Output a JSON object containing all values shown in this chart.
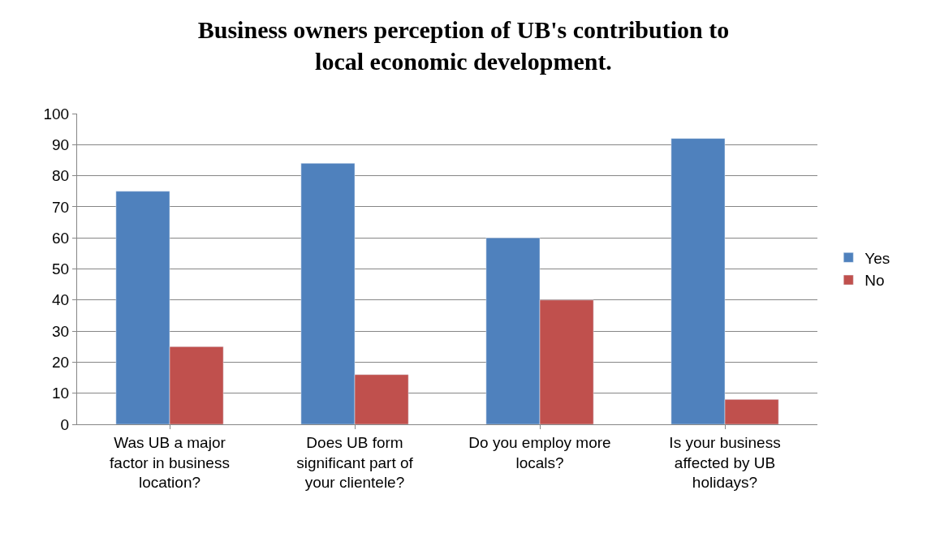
{
  "chart_data": {
    "type": "bar",
    "title": "Business owners perception of UB's contribution to local economic development.",
    "categories": [
      "Was UB a major factor in business location?",
      "Does UB form significant part of your clientele?",
      "Do you employ more locals?",
      "Is your business affected by UB holidays?"
    ],
    "series": [
      {
        "name": "Yes",
        "color": "#4f81bd",
        "values": [
          75,
          84,
          60,
          92
        ]
      },
      {
        "name": "No",
        "color": "#c0504d",
        "values": [
          25,
          16,
          40,
          8
        ]
      }
    ],
    "ylim": [
      0,
      100
    ],
    "yticks": [
      0,
      10,
      20,
      30,
      40,
      50,
      60,
      70,
      80,
      90,
      100
    ],
    "grid": "y",
    "legend": "right"
  }
}
